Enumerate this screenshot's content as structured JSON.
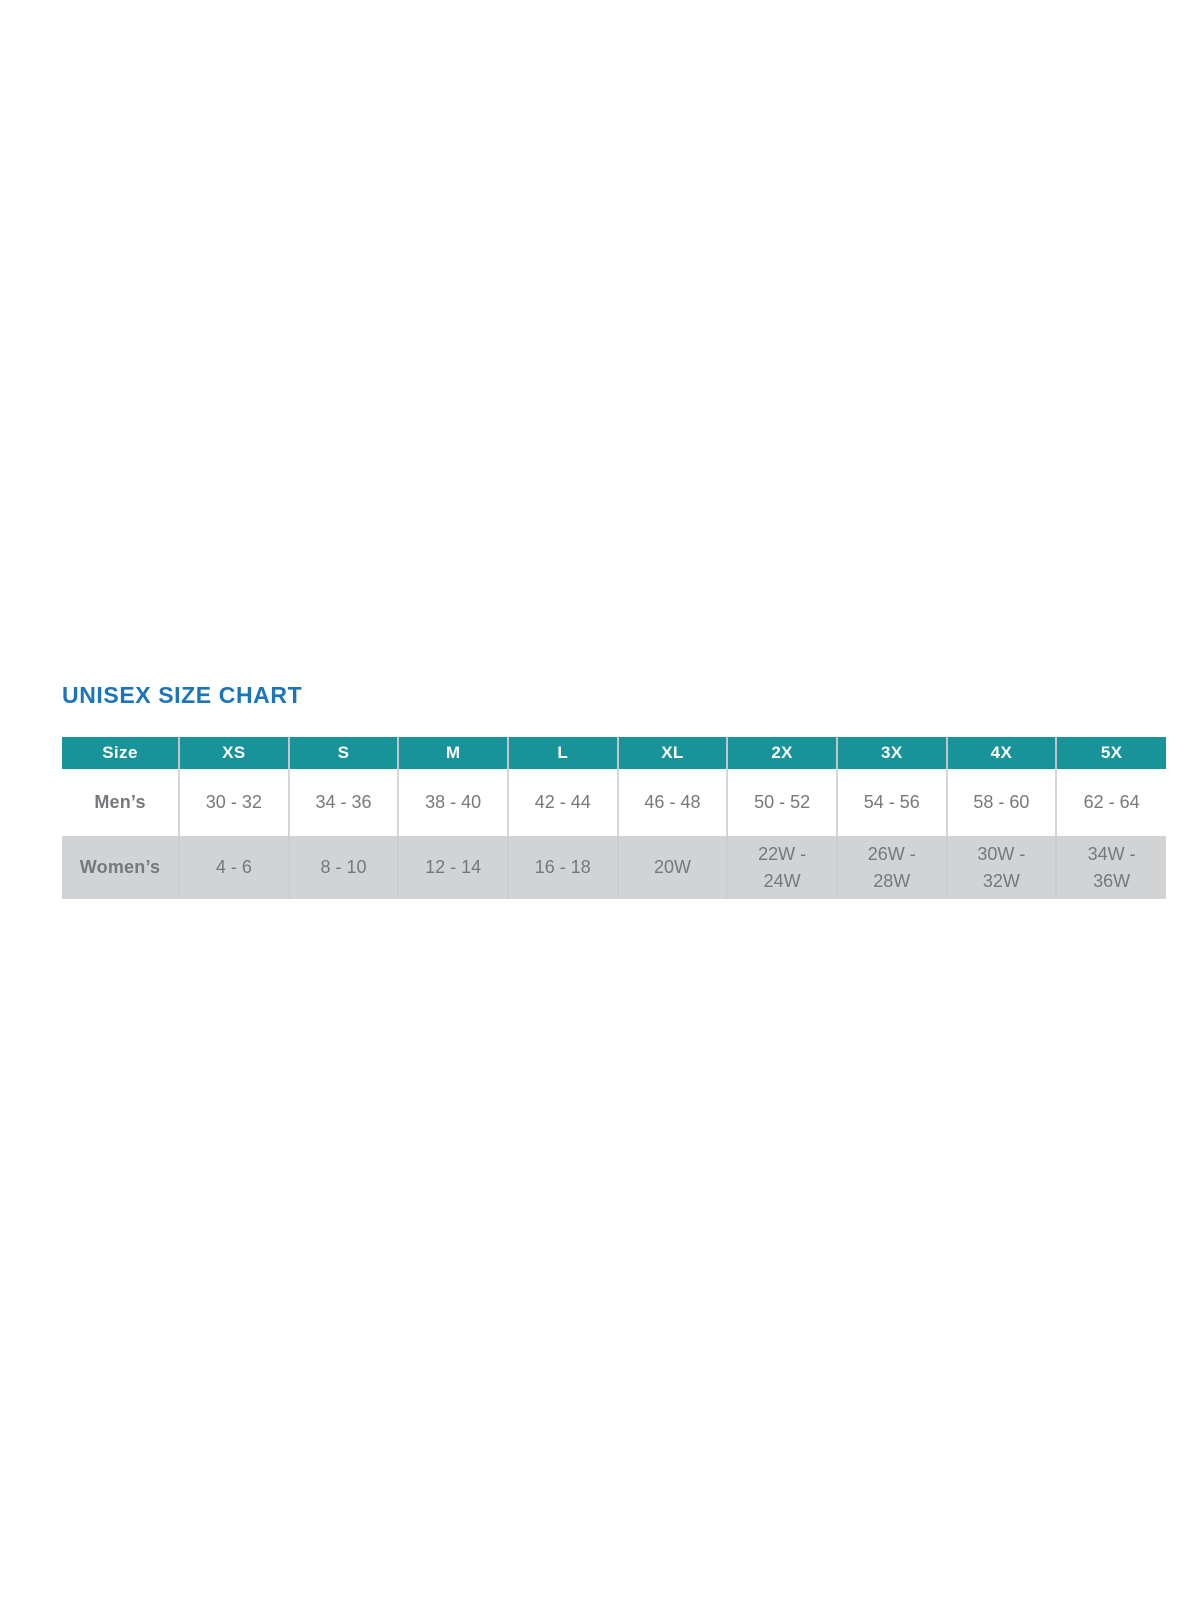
{
  "page": {
    "title": "UNISEX SIZE CHART"
  },
  "colors": {
    "title_blue": "#1B75BC",
    "header_teal": "#18939A",
    "header_text": "#FFFFFF",
    "row_label_text": "#545659",
    "cell_text": "#77787B",
    "mens_row_bg": "#FFFFFF",
    "womens_row_bg": "#D1D3D4",
    "grid_line": "#C6C8CA"
  },
  "chart_data": {
    "type": "table",
    "title": "UNISEX SIZE CHART",
    "columns": [
      "Size",
      "XS",
      "S",
      "M",
      "L",
      "XL",
      "2X",
      "3X",
      "4X",
      "5X"
    ],
    "rows": [
      {
        "label": "Men’s",
        "values": [
          "30 - 32",
          "34 - 36",
          "38 - 40",
          "42 - 44",
          "46 - 48",
          "50 - 52",
          "54 - 56",
          "58 - 60",
          "62 - 64"
        ]
      },
      {
        "label": "Women’s",
        "values": [
          "4 - 6",
          "8 - 10",
          "12 - 14",
          "16 - 18",
          "20W",
          "22W -\n24W",
          "26W -\n28W",
          "30W -\n32W",
          "34W -\n36W"
        ]
      }
    ],
    "layout": {
      "header_style": "teal-banded",
      "zebra_rows": true,
      "grid": "vertical-only"
    }
  }
}
